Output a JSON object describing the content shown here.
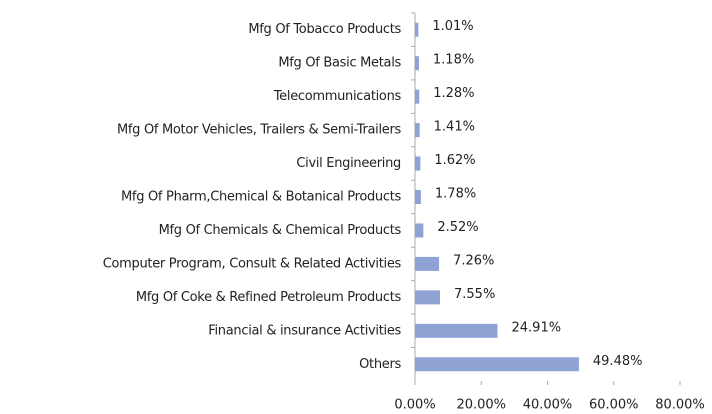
{
  "chart_data": {
    "type": "bar",
    "orientation": "horizontal",
    "categories": [
      "Mfg Of Tobacco Products",
      "Mfg Of Basic Metals",
      "Telecommunications",
      "Mfg Of Motor Vehicles, Trailers & Semi-Trailers",
      "Civil Engineering",
      "Mfg Of Pharm,Chemical & Botanical Products",
      "Mfg Of Chemicals & Chemical Products",
      "Computer Program, Consult & Related Activities",
      "Mfg Of Coke & Refined Petroleum Products",
      "Financial & insurance Activities",
      "Others"
    ],
    "values": [
      1.01,
      1.18,
      1.28,
      1.41,
      1.62,
      1.78,
      2.52,
      7.26,
      7.55,
      24.91,
      49.48
    ],
    "value_labels": [
      "1.01%",
      "1.18%",
      "1.28%",
      "1.41%",
      "1.62%",
      "1.78%",
      "2.52%",
      "7.26%",
      "7.55%",
      "24.91%",
      "49.48%"
    ],
    "color": "#8fa2d4",
    "xlim": [
      0,
      80
    ],
    "xticks": [
      {
        "value": 0,
        "label": "0.00%"
      },
      {
        "value": 20,
        "label": "20.00%"
      },
      {
        "value": 40,
        "label": "40.00%"
      },
      {
        "value": 60,
        "label": "60.00%"
      },
      {
        "value": 80,
        "label": "80.00%"
      }
    ]
  }
}
